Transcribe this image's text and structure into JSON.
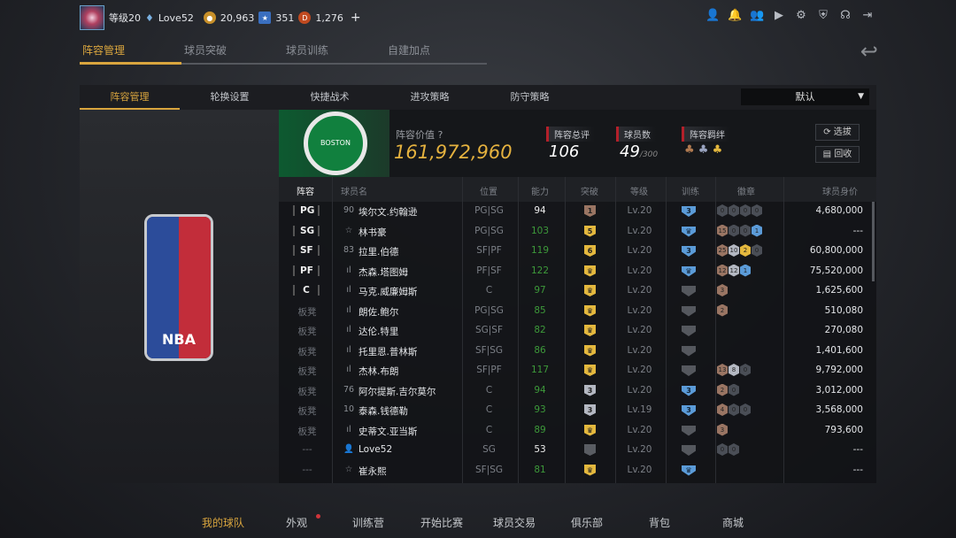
{
  "topbar": {
    "level": "等级20",
    "username": "Love52",
    "coins": "20,963",
    "stars": "351",
    "diamonds": "1,276",
    "add": "+"
  },
  "top_icons": [
    "user-icon",
    "bell-icon",
    "friends-icon",
    "video-icon",
    "gear-icon",
    "shield-icon",
    "headset-icon",
    "logout-icon"
  ],
  "main_tabs": [
    "阵容管理",
    "球员突破",
    "球员训练",
    "自建加点"
  ],
  "sub_tabs": [
    "阵容管理",
    "轮换设置",
    "快捷战术",
    "进攻策略",
    "防守策略"
  ],
  "preset": "默认",
  "team": {
    "logo_text": "BOSTON CELTICS",
    "value_label": "阵容价值",
    "value": "161,972,960",
    "rating_label": "阵容总评",
    "rating": "106",
    "count_label": "球员数",
    "count": "49",
    "count_max": "/300",
    "chem_label": "阵容羁绊",
    "select_btn": "选拔",
    "recycle_btn": "回收"
  },
  "nba_logo": "NBA",
  "columns": [
    "阵容",
    "球员名",
    "位置",
    "能力",
    "突破",
    "等级",
    "训练",
    "徽章",
    "球员身价"
  ],
  "colors": {
    "accent": "#d9a53e",
    "green": "#3d9a3a",
    "bronze": "#9a7563",
    "silver": "#b4b8c2",
    "gold": "#e4b83e",
    "blue": "#5b9bd8",
    "dark": "#4a4e56"
  },
  "rows": [
    {
      "slot": "PG",
      "prefix": "90",
      "name": "埃尔文.约翰逊",
      "pos": "PG|SG",
      "ovr": "94",
      "ovr_green": false,
      "brk": "1",
      "brk_type": "bronze",
      "lv": "Lv.20",
      "trn": "3",
      "trn_type": "blue",
      "badges": [
        [
          "dark",
          "0"
        ],
        [
          "dark",
          "0"
        ],
        [
          "dark",
          "0"
        ],
        [
          "dark",
          "0"
        ]
      ],
      "price": "4,680,000"
    },
    {
      "slot": "SG",
      "prefix": "☆",
      "name": "林书豪",
      "pos": "PG|SG",
      "ovr": "103",
      "ovr_green": true,
      "brk": "5",
      "brk_type": "gold",
      "lv": "Lv.20",
      "trn": "♛",
      "trn_type": "blue",
      "badges": [
        [
          "bronze",
          "15"
        ],
        [
          "dark",
          "0"
        ],
        [
          "dark",
          "0"
        ],
        [
          "blue",
          "1"
        ]
      ],
      "price": "---"
    },
    {
      "slot": "SF",
      "prefix": "83",
      "name": "拉里.伯德",
      "pos": "SF|PF",
      "ovr": "119",
      "ovr_green": true,
      "brk": "6",
      "brk_type": "gold",
      "lv": "Lv.20",
      "trn": "3",
      "trn_type": "blue",
      "badges": [
        [
          "bronze",
          "25"
        ],
        [
          "silver",
          "10"
        ],
        [
          "gold",
          "2"
        ],
        [
          "dark",
          "0"
        ]
      ],
      "price": "60,800,000"
    },
    {
      "slot": "PF",
      "prefix": "ıl",
      "name": "杰森.塔图姆",
      "pos": "PF|SF",
      "ovr": "122",
      "ovr_green": true,
      "brk": "♛",
      "brk_type": "gold",
      "lv": "Lv.20",
      "trn": "♛",
      "trn_type": "blue",
      "badges": [
        [
          "bronze",
          "12"
        ],
        [
          "silver",
          "12"
        ],
        [
          "blue",
          "1"
        ]
      ],
      "price": "75,520,000"
    },
    {
      "slot": "C",
      "prefix": "ıl",
      "name": "马克.威廉姆斯",
      "pos": "C",
      "ovr": "97",
      "ovr_green": true,
      "brk": "♛",
      "brk_type": "gold",
      "lv": "Lv.20",
      "trn": "",
      "trn_type": "grey",
      "badges": [
        [
          "bronze",
          "3"
        ]
      ],
      "price": "1,625,600"
    },
    {
      "slot": "板凳",
      "prefix": "ıl",
      "name": "朗佐.鲍尔",
      "pos": "PG|SG",
      "ovr": "85",
      "ovr_green": true,
      "brk": "♛",
      "brk_type": "gold",
      "lv": "Lv.20",
      "trn": "",
      "trn_type": "grey",
      "badges": [
        [
          "bronze",
          "2"
        ]
      ],
      "price": "510,080"
    },
    {
      "slot": "板凳",
      "prefix": "ıl",
      "name": "达伦.特里",
      "pos": "SG|SF",
      "ovr": "82",
      "ovr_green": true,
      "brk": "♛",
      "brk_type": "gold",
      "lv": "Lv.20",
      "trn": "",
      "trn_type": "grey",
      "badges": [],
      "price": "270,080"
    },
    {
      "slot": "板凳",
      "prefix": "ıl",
      "name": "托里恩.普林斯",
      "pos": "SF|SG",
      "ovr": "86",
      "ovr_green": true,
      "brk": "♛",
      "brk_type": "gold",
      "lv": "Lv.20",
      "trn": "",
      "trn_type": "grey",
      "badges": [],
      "price": "1,401,600"
    },
    {
      "slot": "板凳",
      "prefix": "ıl",
      "name": "杰林.布朗",
      "pos": "SF|PF",
      "ovr": "117",
      "ovr_green": true,
      "brk": "♛",
      "brk_type": "gold",
      "lv": "Lv.20",
      "trn": "",
      "trn_type": "grey",
      "badges": [
        [
          "bronze",
          "13"
        ],
        [
          "silver",
          "8"
        ],
        [
          "dark",
          "0"
        ]
      ],
      "price": "9,792,000"
    },
    {
      "slot": "板凳",
      "prefix": "76",
      "name": "阿尔提斯.吉尔莫尔",
      "pos": "C",
      "ovr": "94",
      "ovr_green": true,
      "brk": "3",
      "brk_type": "silver",
      "lv": "Lv.20",
      "trn": "3",
      "trn_type": "blue",
      "badges": [
        [
          "bronze",
          "2"
        ],
        [
          "dark",
          "0"
        ]
      ],
      "price": "3,012,000"
    },
    {
      "slot": "板凳",
      "prefix": "10",
      "name": "泰森.钱德勒",
      "pos": "C",
      "ovr": "93",
      "ovr_green": true,
      "brk": "3",
      "brk_type": "silver",
      "lv": "Lv.19",
      "trn": "3",
      "trn_type": "blue",
      "badges": [
        [
          "bronze",
          "4"
        ],
        [
          "dark",
          "0"
        ],
        [
          "dark",
          "0"
        ]
      ],
      "price": "3,568,000"
    },
    {
      "slot": "板凳",
      "prefix": "ıl",
      "name": "史蒂文.亚当斯",
      "pos": "C",
      "ovr": "89",
      "ovr_green": true,
      "brk": "♛",
      "brk_type": "gold",
      "lv": "Lv.20",
      "trn": "",
      "trn_type": "grey",
      "badges": [
        [
          "bronze",
          "3"
        ]
      ],
      "price": "793,600"
    },
    {
      "slot": "---",
      "prefix": "👤",
      "name": "Love52",
      "pos": "SG",
      "ovr": "53",
      "ovr_green": false,
      "brk": "",
      "brk_type": "grey",
      "lv": "Lv.20",
      "trn": "",
      "trn_type": "grey",
      "badges": [
        [
          "dark",
          "0"
        ],
        [
          "dark",
          "0"
        ]
      ],
      "price": "---"
    },
    {
      "slot": "---",
      "prefix": "☆",
      "name": "崔永熙",
      "pos": "SF|SG",
      "ovr": "81",
      "ovr_green": true,
      "brk": "♛",
      "brk_type": "gold",
      "lv": "Lv.20",
      "trn": "♛",
      "trn_type": "blue",
      "badges": [],
      "price": "---"
    }
  ],
  "bottom_nav": [
    "我的球队",
    "外观",
    "训练营",
    "开始比赛",
    "球员交易",
    "俱乐部",
    "背包",
    "商城"
  ]
}
